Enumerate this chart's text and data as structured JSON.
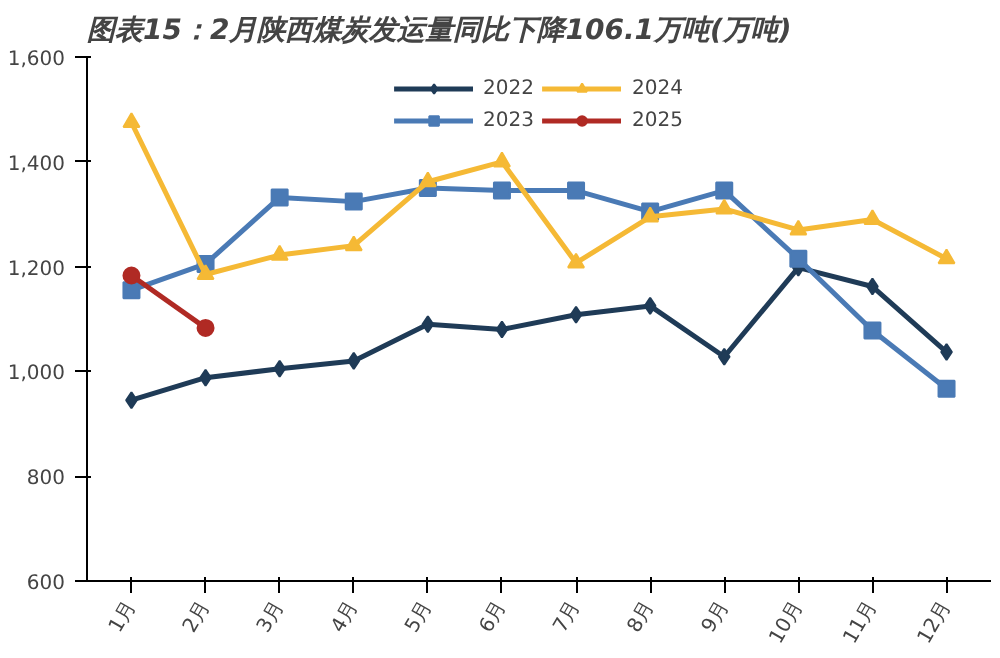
{
  "chart_data": {
    "type": "line",
    "title": "图表15：2月陕西煤炭发运量同比下降106.1万吨(万吨)",
    "categories": [
      "1月",
      "2月",
      "3月",
      "4月",
      "5月",
      "6月",
      "7月",
      "8月",
      "9月",
      "10月",
      "11月",
      "12月"
    ],
    "series": [
      {
        "name": "2022",
        "color": "#1f3b57",
        "marker": "diamond",
        "values": [
          945,
          988,
          1005,
          1020,
          1090,
          1080,
          1108,
          1125,
          1028,
          1198,
          1162,
          1037
        ]
      },
      {
        "name": "2023",
        "color": "#4a7ab5",
        "marker": "square",
        "values": [
          1155,
          1205,
          1332,
          1324,
          1350,
          1345,
          1345,
          1305,
          1345,
          1215,
          1078,
          967
        ]
      },
      {
        "name": "2024",
        "color": "#f5b935",
        "marker": "triangle",
        "values": [
          1475,
          1185,
          1222,
          1240,
          1362,
          1400,
          1207,
          1295,
          1310,
          1270,
          1290,
          1215
        ]
      },
      {
        "name": "2025",
        "color": "#b02a24",
        "marker": "circle",
        "values": [
          1183,
          1083,
          null,
          null,
          null,
          null,
          null,
          null,
          null,
          null,
          null,
          null
        ]
      }
    ],
    "ylim": [
      600,
      1600
    ],
    "yticks": [
      {
        "value": 600,
        "label": "600"
      },
      {
        "value": 800,
        "label": "800"
      },
      {
        "value": 1000,
        "label": "1,000"
      },
      {
        "value": 1200,
        "label": "1,200"
      },
      {
        "value": 1400,
        "label": "1,400"
      },
      {
        "value": 1600,
        "label": "1,600"
      }
    ],
    "grid": false,
    "legend": "top",
    "line_style": "solid"
  }
}
